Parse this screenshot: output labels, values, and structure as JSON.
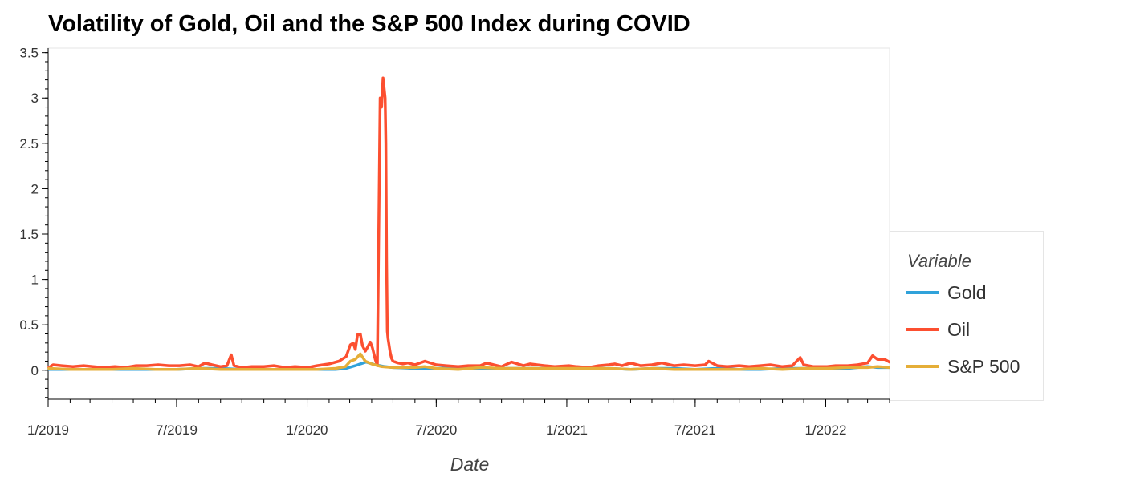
{
  "chart_data": {
    "type": "line",
    "title": "Volatility of Gold, Oil and the S&P 500 Index during COVID",
    "xlabel": "Date",
    "ylabel": "",
    "xlim": [
      "2019-01-01",
      "2022-04-01"
    ],
    "ylim": [
      -0.32,
      3.55
    ],
    "yticks": [
      0,
      0.5,
      1,
      1.5,
      2,
      2.5,
      3,
      3.5
    ],
    "ytick_labels": [
      "0",
      "0.5",
      "1",
      "1.5",
      "2",
      "2.5",
      "3",
      "3.5"
    ],
    "xticks": [
      "2019-01-01",
      "2019-07-01",
      "2020-01-01",
      "2020-07-01",
      "2021-01-01",
      "2021-07-01",
      "2022-01-01"
    ],
    "xtick_labels": [
      "1/2019",
      "7/2019",
      "1/2020",
      "7/2020",
      "1/2021",
      "7/2021",
      "1/2022"
    ],
    "grid": false,
    "legend": {
      "title": "Variable",
      "placement": "right"
    },
    "series": [
      {
        "name": "Gold",
        "color": "#30a2da",
        "x": [
          "2019-01-02",
          "2019-02-01",
          "2019-03-01",
          "2019-04-01",
          "2019-05-01",
          "2019-06-01",
          "2019-07-01",
          "2019-08-01",
          "2019-09-01",
          "2019-10-01",
          "2019-11-01",
          "2019-12-01",
          "2020-01-15",
          "2020-02-10",
          "2020-02-25",
          "2020-03-09",
          "2020-03-16",
          "2020-03-24",
          "2020-04-06",
          "2020-04-20",
          "2020-05-01",
          "2020-06-01",
          "2020-07-01",
          "2020-08-03",
          "2020-08-12",
          "2020-09-01",
          "2020-10-01",
          "2020-11-02",
          "2020-12-01",
          "2021-01-04",
          "2021-02-01",
          "2021-03-01",
          "2021-04-01",
          "2021-05-03",
          "2021-06-01",
          "2021-07-01",
          "2021-08-02",
          "2021-09-01",
          "2021-10-01",
          "2021-11-01",
          "2021-12-01",
          "2022-01-03",
          "2022-02-01",
          "2022-03-01",
          "2022-03-15",
          "2022-04-01"
        ],
        "y": [
          0.01,
          0.01,
          0.01,
          0.01,
          0.01,
          0.01,
          0.01,
          0.02,
          0.02,
          0.01,
          0.01,
          0.01,
          0.01,
          0.01,
          0.02,
          0.05,
          0.07,
          0.09,
          0.06,
          0.04,
          0.03,
          0.02,
          0.02,
          0.03,
          0.02,
          0.02,
          0.02,
          0.02,
          0.02,
          0.02,
          0.02,
          0.02,
          0.01,
          0.02,
          0.02,
          0.01,
          0.02,
          0.01,
          0.01,
          0.02,
          0.02,
          0.02,
          0.02,
          0.04,
          0.03,
          0.03
        ]
      },
      {
        "name": "Oil",
        "color": "#fc4f30",
        "x": [
          "2019-01-02",
          "2019-01-08",
          "2019-01-20",
          "2019-02-05",
          "2019-02-20",
          "2019-03-05",
          "2019-03-20",
          "2019-04-05",
          "2019-04-20",
          "2019-05-05",
          "2019-05-20",
          "2019-06-05",
          "2019-06-20",
          "2019-07-05",
          "2019-07-20",
          "2019-08-01",
          "2019-08-10",
          "2019-08-20",
          "2019-09-01",
          "2019-09-10",
          "2019-09-16",
          "2019-09-20",
          "2019-10-01",
          "2019-10-15",
          "2019-11-01",
          "2019-11-15",
          "2019-12-01",
          "2019-12-15",
          "2020-01-02",
          "2020-01-15",
          "2020-02-01",
          "2020-02-15",
          "2020-02-25",
          "2020-03-02",
          "2020-03-06",
          "2020-03-09",
          "2020-03-12",
          "2020-03-16",
          "2020-03-19",
          "2020-03-23",
          "2020-03-26",
          "2020-03-30",
          "2020-04-02",
          "2020-04-06",
          "2020-04-09",
          "2020-04-13",
          "2020-04-15",
          "2020-04-17",
          "2020-04-20",
          "2020-04-21",
          "2020-04-22",
          "2020-04-23",
          "2020-04-24",
          "2020-04-27",
          "2020-04-29",
          "2020-05-01",
          "2020-05-08",
          "2020-05-15",
          "2020-05-22",
          "2020-06-01",
          "2020-06-15",
          "2020-07-01",
          "2020-07-15",
          "2020-08-01",
          "2020-08-15",
          "2020-09-01",
          "2020-09-10",
          "2020-09-20",
          "2020-10-01",
          "2020-10-15",
          "2020-11-01",
          "2020-11-10",
          "2020-11-20",
          "2020-12-01",
          "2020-12-15",
          "2021-01-04",
          "2021-01-15",
          "2021-02-01",
          "2021-02-15",
          "2021-03-01",
          "2021-03-10",
          "2021-03-20",
          "2021-04-01",
          "2021-04-15",
          "2021-05-01",
          "2021-05-15",
          "2021-06-01",
          "2021-06-15",
          "2021-07-01",
          "2021-07-15",
          "2021-07-20",
          "2021-08-01",
          "2021-08-15",
          "2021-09-01",
          "2021-09-15",
          "2021-10-01",
          "2021-10-15",
          "2021-11-01",
          "2021-11-15",
          "2021-11-26",
          "2021-12-01",
          "2021-12-15",
          "2022-01-03",
          "2022-01-15",
          "2022-02-01",
          "2022-02-15",
          "2022-03-01",
          "2022-03-08",
          "2022-03-15",
          "2022-03-25",
          "2022-04-01"
        ],
        "y": [
          0.03,
          0.06,
          0.05,
          0.04,
          0.05,
          0.04,
          0.03,
          0.04,
          0.03,
          0.05,
          0.05,
          0.06,
          0.05,
          0.05,
          0.06,
          0.04,
          0.08,
          0.06,
          0.04,
          0.05,
          0.17,
          0.05,
          0.03,
          0.04,
          0.04,
          0.05,
          0.03,
          0.04,
          0.03,
          0.05,
          0.07,
          0.1,
          0.15,
          0.28,
          0.3,
          0.23,
          0.39,
          0.4,
          0.27,
          0.21,
          0.25,
          0.31,
          0.25,
          0.12,
          0.05,
          3.0,
          2.9,
          3.22,
          3.0,
          2.5,
          1.2,
          0.43,
          0.35,
          0.2,
          0.13,
          0.1,
          0.08,
          0.07,
          0.08,
          0.06,
          0.1,
          0.06,
          0.05,
          0.04,
          0.05,
          0.05,
          0.08,
          0.06,
          0.04,
          0.09,
          0.05,
          0.07,
          0.06,
          0.05,
          0.04,
          0.05,
          0.04,
          0.03,
          0.05,
          0.06,
          0.07,
          0.05,
          0.08,
          0.05,
          0.06,
          0.08,
          0.05,
          0.06,
          0.05,
          0.06,
          0.1,
          0.05,
          0.04,
          0.05,
          0.04,
          0.05,
          0.06,
          0.04,
          0.05,
          0.14,
          0.06,
          0.04,
          0.04,
          0.05,
          0.05,
          0.06,
          0.08,
          0.16,
          0.12,
          0.12,
          0.09
        ]
      },
      {
        "name": "S&P 500",
        "color": "#e5ae38",
        "x": [
          "2019-01-02",
          "2019-02-01",
          "2019-03-01",
          "2019-04-01",
          "2019-05-01",
          "2019-06-01",
          "2019-07-01",
          "2019-08-01",
          "2019-09-01",
          "2019-10-01",
          "2019-11-01",
          "2019-12-01",
          "2020-01-15",
          "2020-02-10",
          "2020-02-24",
          "2020-03-02",
          "2020-03-09",
          "2020-03-16",
          "2020-03-23",
          "2020-04-01",
          "2020-04-15",
          "2020-05-01",
          "2020-06-01",
          "2020-06-15",
          "2020-07-01",
          "2020-08-01",
          "2020-09-01",
          "2020-10-01",
          "2020-11-02",
          "2020-12-01",
          "2021-01-04",
          "2021-02-01",
          "2021-03-01",
          "2021-04-01",
          "2021-05-03",
          "2021-06-01",
          "2021-07-01",
          "2021-08-02",
          "2021-09-01",
          "2021-10-01",
          "2021-11-01",
          "2021-12-01",
          "2022-01-03",
          "2022-02-01",
          "2022-03-01",
          "2022-03-15",
          "2022-04-01"
        ],
        "y": [
          0.02,
          0.01,
          0.01,
          0.01,
          0.02,
          0.01,
          0.01,
          0.02,
          0.01,
          0.01,
          0.01,
          0.01,
          0.01,
          0.02,
          0.04,
          0.1,
          0.12,
          0.18,
          0.1,
          0.07,
          0.04,
          0.03,
          0.03,
          0.04,
          0.02,
          0.01,
          0.03,
          0.02,
          0.02,
          0.02,
          0.02,
          0.02,
          0.02,
          0.01,
          0.02,
          0.01,
          0.01,
          0.01,
          0.01,
          0.02,
          0.01,
          0.02,
          0.02,
          0.03,
          0.03,
          0.04,
          0.03
        ]
      }
    ]
  }
}
